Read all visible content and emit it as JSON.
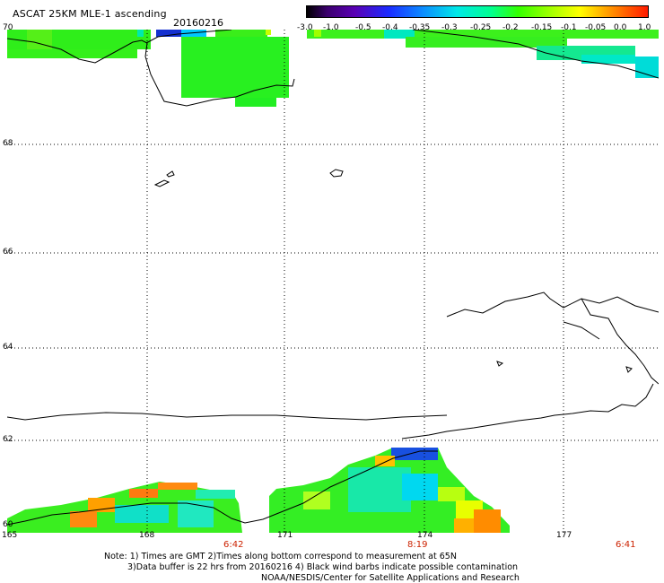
{
  "header": {
    "title": "ASCAT 25KM MLE-1 ascending",
    "date": "20160216"
  },
  "colorbar": {
    "labels": [
      "-3.0",
      "-1.0",
      "-0.5",
      "-0.4",
      "-0.35",
      "-0.3",
      "-0.25",
      "-0.2",
      "-0.15",
      "-0.1",
      "-0.05",
      "0.0",
      "1.0"
    ]
  },
  "axes": {
    "latitudes": [
      "70",
      "68",
      "66",
      "64",
      "62",
      "60"
    ],
    "longitudes": [
      "165",
      "168",
      "171",
      "174",
      "177"
    ]
  },
  "times": [
    "6:42",
    "8:19",
    "6:41"
  ],
  "notes": {
    "line1": "Note: 1) Times are GMT 2)Times along bottom correspond to measurement at 65N",
    "line2": "3)Data buffer is 22 hrs from 20160216 4) Black wind barbs indicate possible contamination",
    "line3": "NOAA/NESDIS/Center for Satellite Applications and Research"
  }
}
